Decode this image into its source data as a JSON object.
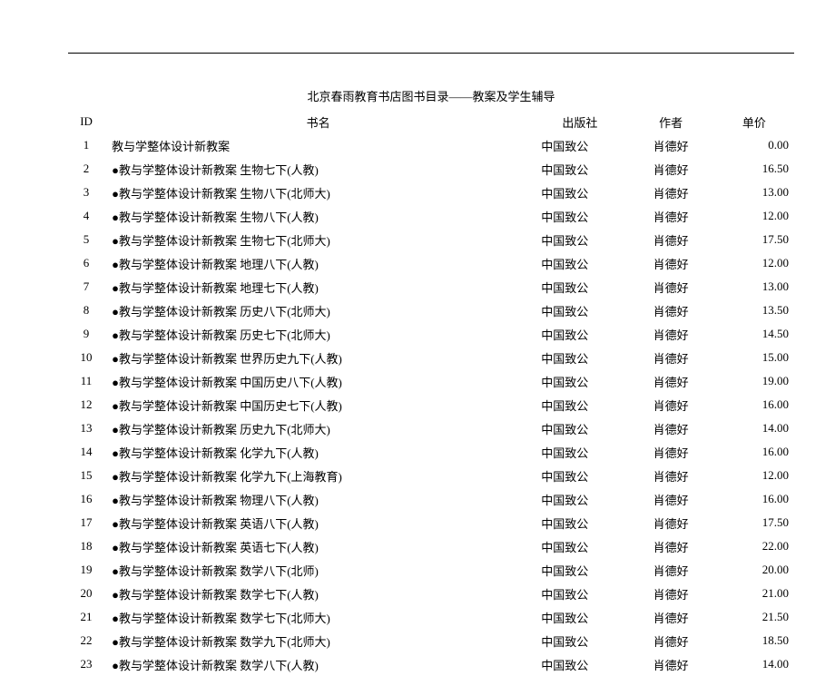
{
  "title": "北京春雨教育书店图书目录——教案及学生辅导",
  "headers": {
    "id": "ID",
    "name": "书名",
    "publisher": "出版社",
    "author": "作者",
    "price": "单价"
  },
  "rows": [
    {
      "id": "1",
      "name": "教与学整体设计新教案",
      "publisher": "中国致公",
      "author": "肖德好",
      "price": "0.00"
    },
    {
      "id": "2",
      "name": "●教与学整体设计新教案  生物七下(人教)",
      "publisher": "中国致公",
      "author": "肖德好",
      "price": "16.50"
    },
    {
      "id": "3",
      "name": "●教与学整体设计新教案  生物八下(北师大)",
      "publisher": "中国致公",
      "author": "肖德好",
      "price": "13.00"
    },
    {
      "id": "4",
      "name": "●教与学整体设计新教案  生物八下(人教)",
      "publisher": "中国致公",
      "author": "肖德好",
      "price": "12.00"
    },
    {
      "id": "5",
      "name": "●教与学整体设计新教案  生物七下(北师大)",
      "publisher": "中国致公",
      "author": "肖德好",
      "price": "17.50"
    },
    {
      "id": "6",
      "name": "●教与学整体设计新教案  地理八下(人教)",
      "publisher": "中国致公",
      "author": "肖德好",
      "price": "12.00"
    },
    {
      "id": "7",
      "name": "●教与学整体设计新教案  地理七下(人教)",
      "publisher": "中国致公",
      "author": "肖德好",
      "price": "13.00"
    },
    {
      "id": "8",
      "name": "●教与学整体设计新教案  历史八下(北师大)",
      "publisher": "中国致公",
      "author": "肖德好",
      "price": "13.50"
    },
    {
      "id": "9",
      "name": "●教与学整体设计新教案  历史七下(北师大)",
      "publisher": "中国致公",
      "author": "肖德好",
      "price": "14.50"
    },
    {
      "id": "10",
      "name": "●教与学整体设计新教案  世界历史九下(人教)",
      "publisher": "中国致公",
      "author": "肖德好",
      "price": "15.00"
    },
    {
      "id": "11",
      "name": "●教与学整体设计新教案  中国历史八下(人教)",
      "publisher": "中国致公",
      "author": "肖德好",
      "price": "19.00"
    },
    {
      "id": "12",
      "name": "●教与学整体设计新教案  中国历史七下(人教)",
      "publisher": "中国致公",
      "author": "肖德好",
      "price": "16.00"
    },
    {
      "id": "13",
      "name": "●教与学整体设计新教案  历史九下(北师大)",
      "publisher": "中国致公",
      "author": "肖德好",
      "price": "14.00"
    },
    {
      "id": "14",
      "name": "●教与学整体设计新教案  化学九下(人教)",
      "publisher": "中国致公",
      "author": "肖德好",
      "price": "16.00"
    },
    {
      "id": "15",
      "name": "●教与学整体设计新教案  化学九下(上海教育)",
      "publisher": "中国致公",
      "author": "肖德好",
      "price": "12.00"
    },
    {
      "id": "16",
      "name": "●教与学整体设计新教案  物理八下(人教)",
      "publisher": "中国致公",
      "author": "肖德好",
      "price": "16.00"
    },
    {
      "id": "17",
      "name": "●教与学整体设计新教案  英语八下(人教)",
      "publisher": "中国致公",
      "author": "肖德好",
      "price": "17.50"
    },
    {
      "id": "18",
      "name": "●教与学整体设计新教案  英语七下(人教)",
      "publisher": "中国致公",
      "author": "肖德好",
      "price": "22.00"
    },
    {
      "id": "19",
      "name": "●教与学整体设计新教案  数学八下(北师)",
      "publisher": "中国致公",
      "author": "肖德好",
      "price": "20.00"
    },
    {
      "id": "20",
      "name": "●教与学整体设计新教案  数学七下(人教)",
      "publisher": "中国致公",
      "author": "肖德好",
      "price": "21.00"
    },
    {
      "id": "21",
      "name": "●教与学整体设计新教案  数学七下(北师大)",
      "publisher": "中国致公",
      "author": "肖德好",
      "price": "21.50"
    },
    {
      "id": "22",
      "name": "●教与学整体设计新教案  数学九下(北师大)",
      "publisher": "中国致公",
      "author": "肖德好",
      "price": "18.50"
    },
    {
      "id": "23",
      "name": "●教与学整体设计新教案  数学八下(人教)",
      "publisher": "中国致公",
      "author": "肖德好",
      "price": "14.00"
    }
  ]
}
